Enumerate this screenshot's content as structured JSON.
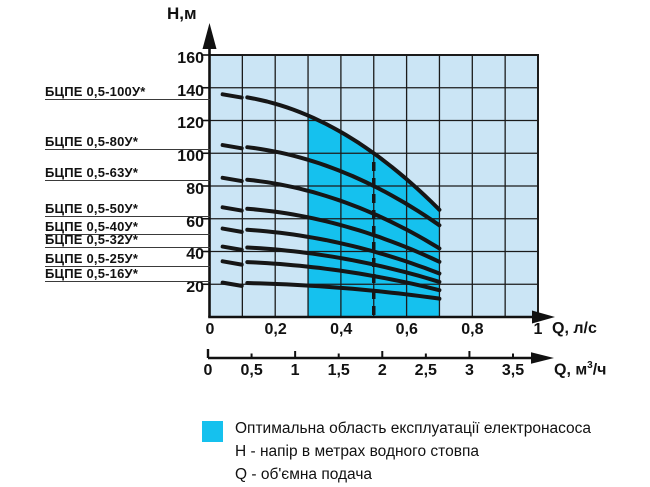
{
  "colors": {
    "plot_bg": "#cbe5f5",
    "optimal_region": "#15c1ee",
    "grid": "#1b1b1b",
    "curve": "#161616",
    "axis": "#111111",
    "leader": "#3a3a3a"
  },
  "y_axis": {
    "title": "Н,м",
    "ticks": [
      "160",
      "140",
      "120",
      "100",
      "80",
      "60",
      "40",
      "20"
    ]
  },
  "x_axis_ls": {
    "title": "Q, л/с",
    "ticks": [
      "0",
      "0,2",
      "0,4",
      "0,6",
      "0,8",
      "1"
    ]
  },
  "x_axis_m3h": {
    "title_prefix": "Q, м",
    "title_sup": "3",
    "title_suffix": "/ч",
    "ticks": [
      "0",
      "0,5",
      "1",
      "1,5",
      "2",
      "2,5",
      "3",
      "3,5"
    ]
  },
  "legend": {
    "optimal_region": "Оптимальна область експлуатації електронасоса",
    "h_definition": "Н - напір в метрах водного стовпа",
    "q_definition": "Q - об'ємна подача"
  },
  "chart_data": {
    "type": "line",
    "xlabel": "Q, л/с",
    "xlabel_secondary": "Q, м³/ч",
    "ylabel": "Н,м",
    "xlim": [
      0,
      1
    ],
    "ylim": [
      0,
      160
    ],
    "x_ticks": [
      0,
      0.2,
      0.4,
      0.6,
      0.8,
      1
    ],
    "x_ticks_secondary_m3h": [
      0,
      0.5,
      1,
      1.5,
      2,
      2.5,
      3,
      3.5
    ],
    "y_ticks": [
      20,
      40,
      60,
      80,
      100,
      120,
      140,
      160
    ],
    "grid": true,
    "legend_position": "bottom",
    "optimal_region_q_ls": [
      0.3,
      0.7
    ],
    "rated_flow_dash_q_ls": 0.5,
    "series": [
      {
        "name": "БЦПЕ 0,5-100У*",
        "shutoff_h_m": 136,
        "nominal_q_ls": 0.5,
        "nominal_h_m": 100,
        "q_end_ls": 0.7,
        "points_q_h": [
          [
            0.1,
            134.6
          ],
          [
            0.2,
            130.2
          ],
          [
            0.3,
            123.0
          ],
          [
            0.4,
            113.0
          ],
          [
            0.5,
            100.0
          ],
          [
            0.6,
            84.2
          ],
          [
            0.7,
            65.4
          ]
        ]
      },
      {
        "name": "БЦПЕ 0,5-80У*",
        "shutoff_h_m": 105,
        "nominal_q_ls": 0.5,
        "nominal_h_m": 80,
        "q_end_ls": 0.7,
        "points_q_h": [
          [
            0.1,
            104.0
          ],
          [
            0.2,
            101.0
          ],
          [
            0.3,
            96.0
          ],
          [
            0.4,
            89.0
          ],
          [
            0.5,
            80.0
          ],
          [
            0.6,
            69.0
          ],
          [
            0.7,
            56.0
          ]
        ]
      },
      {
        "name": "БЦПЕ 0,5-63У*",
        "shutoff_h_m": 85,
        "nominal_q_ls": 0.5,
        "nominal_h_m": 63,
        "q_end_ls": 0.7,
        "points_q_h": [
          [
            0.1,
            84.1
          ],
          [
            0.2,
            81.5
          ],
          [
            0.3,
            77.1
          ],
          [
            0.4,
            70.9
          ],
          [
            0.5,
            63.0
          ],
          [
            0.6,
            53.3
          ],
          [
            0.7,
            41.9
          ]
        ]
      },
      {
        "name": "БЦПЕ 0,5-50У*",
        "shutoff_h_m": 67,
        "nominal_q_ls": 0.5,
        "nominal_h_m": 50,
        "q_end_ls": 0.7,
        "points_q_h": [
          [
            0.1,
            66.3
          ],
          [
            0.2,
            64.3
          ],
          [
            0.3,
            60.9
          ],
          [
            0.4,
            56.1
          ],
          [
            0.5,
            50.0
          ],
          [
            0.6,
            42.5
          ],
          [
            0.7,
            33.7
          ]
        ]
      },
      {
        "name": "БЦПЕ 0,5-40У*",
        "shutoff_h_m": 54,
        "nominal_q_ls": 0.5,
        "nominal_h_m": 40,
        "q_end_ls": 0.7,
        "points_q_h": [
          [
            0.1,
            53.4
          ],
          [
            0.2,
            51.8
          ],
          [
            0.3,
            49.0
          ],
          [
            0.4,
            45.0
          ],
          [
            0.5,
            40.0
          ],
          [
            0.6,
            33.8
          ],
          [
            0.7,
            26.6
          ]
        ]
      },
      {
        "name": "БЦПЕ 0,5-32У*",
        "shutoff_h_m": 43,
        "nominal_q_ls": 0.5,
        "nominal_h_m": 32,
        "q_end_ls": 0.7,
        "points_q_h": [
          [
            0.1,
            42.6
          ],
          [
            0.2,
            41.2
          ],
          [
            0.3,
            39.0
          ],
          [
            0.4,
            36.0
          ],
          [
            0.5,
            32.0
          ],
          [
            0.6,
            27.2
          ],
          [
            0.7,
            21.4
          ]
        ]
      },
      {
        "name": "БЦПЕ 0,5-25У*",
        "shutoff_h_m": 34,
        "nominal_q_ls": 0.5,
        "nominal_h_m": 25,
        "q_end_ls": 0.7,
        "points_q_h": [
          [
            0.1,
            33.6
          ],
          [
            0.2,
            32.6
          ],
          [
            0.3,
            30.8
          ],
          [
            0.4,
            28.2
          ],
          [
            0.5,
            25.0
          ],
          [
            0.6,
            21.0
          ],
          [
            0.7,
            16.4
          ]
        ]
      },
      {
        "name": "БЦПЕ 0,5-16У*",
        "shutoff_h_m": 21,
        "nominal_q_ls": 0.5,
        "nominal_h_m": 16,
        "q_end_ls": 0.7,
        "points_q_h": [
          [
            0.1,
            20.8
          ],
          [
            0.2,
            20.2
          ],
          [
            0.3,
            19.2
          ],
          [
            0.4,
            17.8
          ],
          [
            0.5,
            16.0
          ],
          [
            0.6,
            13.8
          ],
          [
            0.7,
            11.2
          ]
        ]
      }
    ]
  }
}
